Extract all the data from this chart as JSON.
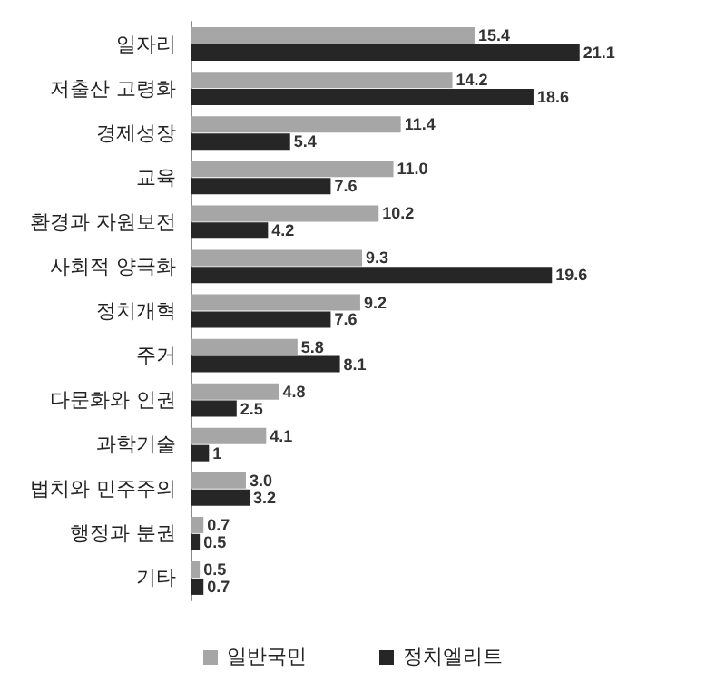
{
  "chart_data": {
    "type": "bar",
    "orientation": "horizontal",
    "categories": [
      "일자리",
      "저출산 고령화",
      "경제성장",
      "교육",
      "환경과 자원보전",
      "사회적 양극화",
      "정치개혁",
      "주거",
      "다문화와 인권",
      "과학기술",
      "법치와 민주주의",
      "행정과 분권",
      "기타"
    ],
    "series": [
      {
        "name": "일반국민",
        "color": "#a6a6a6",
        "values": [
          15.4,
          14.2,
          11.4,
          11.0,
          10.2,
          9.3,
          9.2,
          5.8,
          4.8,
          4.1,
          3.0,
          0.7,
          0.5
        ],
        "value_labels": [
          "15.4",
          "14.2",
          "11.4",
          "11.0",
          "10.2",
          "9.3",
          "9.2",
          "5.8",
          "4.8",
          "4.1",
          "3.0",
          "0.7",
          "0.5"
        ]
      },
      {
        "name": "정치엘리트",
        "color": "#262626",
        "values": [
          21.1,
          18.6,
          5.4,
          7.6,
          4.2,
          19.6,
          7.6,
          8.1,
          2.5,
          1,
          3.2,
          0.5,
          0.7
        ],
        "value_labels": [
          "21.1",
          "18.6",
          "5.4",
          "7.6",
          "4.2",
          "19.6",
          "7.6",
          "8.1",
          "2.5",
          "1",
          "3.2",
          "0.5",
          "0.7"
        ]
      }
    ],
    "legend": "bottom",
    "grid": false,
    "tick_labels": "y"
  }
}
